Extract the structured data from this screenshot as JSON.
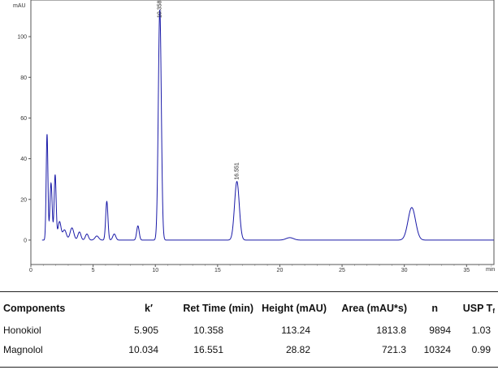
{
  "chart_data": {
    "type": "line",
    "y_unit": "mAU",
    "x_unit": "min",
    "xlim": [
      0,
      37.2
    ],
    "ylim": [
      -12,
      118
    ],
    "x_ticks": [
      0,
      5,
      10,
      15,
      20,
      25,
      30,
      35
    ],
    "y_ticks": [
      0,
      20,
      40,
      60,
      80,
      100
    ],
    "grid": false,
    "peak_labels": [
      "10.358",
      "16.551"
    ],
    "peaks": [
      {
        "rt": 1.3,
        "height": 52,
        "width": 0.07
      },
      {
        "rt": 1.62,
        "height": 28,
        "width": 0.09
      },
      {
        "rt": 1.95,
        "height": 32,
        "width": 0.08
      },
      {
        "rt": 2.3,
        "height": 9,
        "width": 0.12
      },
      {
        "rt": 2.7,
        "height": 5,
        "width": 0.15
      },
      {
        "rt": 3.3,
        "height": 6,
        "width": 0.15
      },
      {
        "rt": 3.9,
        "height": 4,
        "width": 0.12
      },
      {
        "rt": 4.5,
        "height": 3,
        "width": 0.12
      },
      {
        "rt": 5.3,
        "height": 2,
        "width": 0.15
      },
      {
        "rt": 6.1,
        "height": 19,
        "width": 0.09
      },
      {
        "rt": 6.7,
        "height": 3,
        "width": 0.12
      },
      {
        "rt": 8.6,
        "height": 7,
        "width": 0.1
      },
      {
        "rt": 10.358,
        "height": 113.24,
        "width": 0.12
      },
      {
        "rt": 16.551,
        "height": 28.82,
        "width": 0.19
      },
      {
        "rt": 20.8,
        "height": 1.2,
        "width": 0.3
      },
      {
        "rt": 30.6,
        "height": 16,
        "width": 0.3
      }
    ]
  },
  "table": {
    "headers": {
      "components": "Components",
      "k": "k′",
      "ret_time": "Ret Time (min)",
      "height": "Height (mAU)",
      "area": "Area (mAU*s)",
      "n": "n",
      "usp": "USP T",
      "usp_sub": "f"
    },
    "rows": [
      {
        "name": "Honokiol",
        "k": "5.905",
        "ret_time": "10.358",
        "height": "113.24",
        "area": "1813.8",
        "n": "9894",
        "usp": "1.03"
      },
      {
        "name": "Magnolol",
        "k": "10.034",
        "ret_time": "16.551",
        "height": "28.82",
        "area": "721.3",
        "n": "10324",
        "usp": "0.99"
      }
    ]
  }
}
